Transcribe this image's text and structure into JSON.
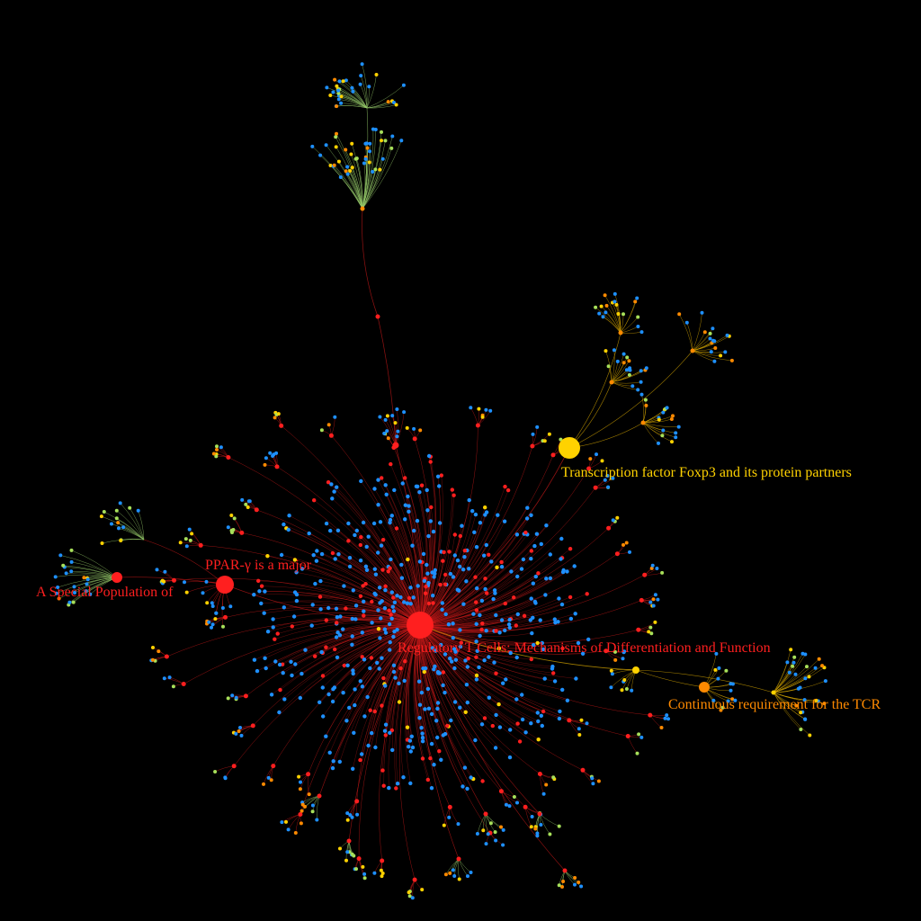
{
  "colors": {
    "background": "#000000",
    "red": "#ff1f1f",
    "blue": "#1e90ff",
    "yellow": "#ffd200",
    "orange": "#ff8a00",
    "green": "#a7e05a",
    "edge_red": "#c41818",
    "edge_yellow": "#d8a800",
    "edge_green": "#96c96a"
  },
  "labels": {
    "center": "Regulatory T Cells: Mechanisms of Differentiation and Function",
    "foxp3": "Transcription factor Foxp3 and its protein partners",
    "pparg": "PPAR-γ is a major",
    "special": "A Special Population of",
    "tcr": "Continuous requirement for the TCR"
  },
  "label_colors": {
    "center": "red",
    "foxp3": "yellow",
    "pparg": "red",
    "special": "red",
    "tcr": "orange"
  },
  "node_colors": {
    "center": "red",
    "foxp3": "yellow",
    "pparg": "red",
    "special": "red",
    "tcr": "orange",
    "tcr_hub": "yellow"
  }
}
